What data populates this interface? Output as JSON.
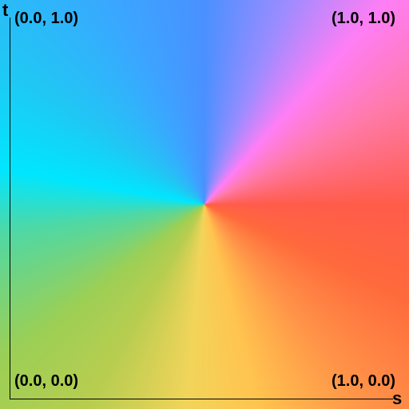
{
  "axes": {
    "vertical_label": "t",
    "horizontal_label": "s"
  },
  "corners": {
    "top_left": "(0.0, 1.0)",
    "top_right": "(1.0, 1.0)",
    "bottom_left": "(0.0, 0.0)",
    "bottom_right": "(1.0, 0.0)"
  }
}
